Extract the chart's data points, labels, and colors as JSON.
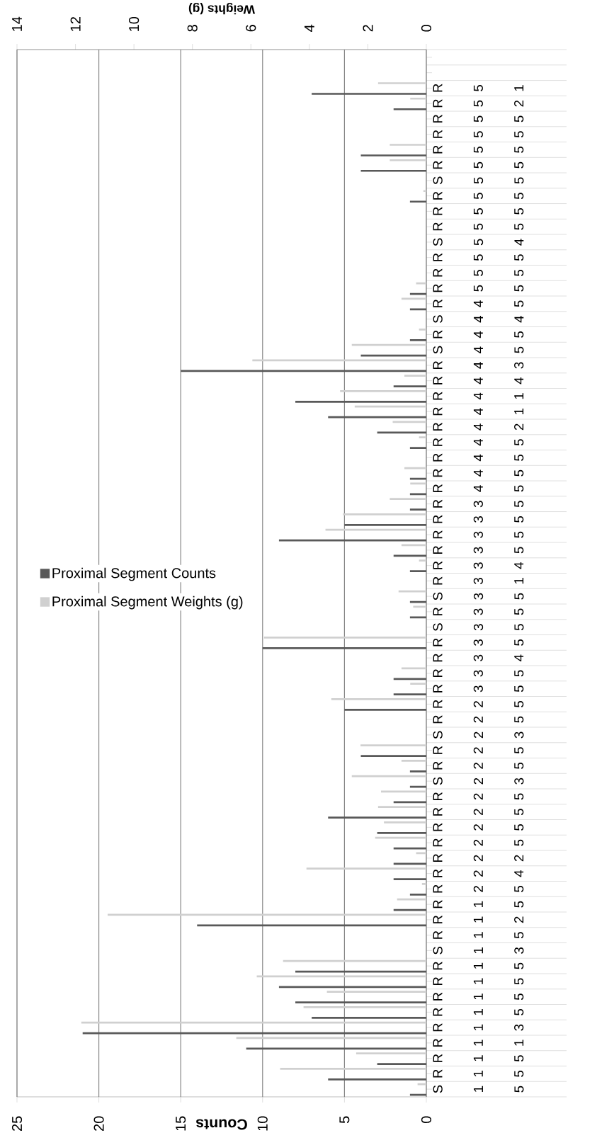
{
  "chart_data": {
    "type": "bar",
    "orientation": "horizontal",
    "categories": [
      null,
      null,
      "R 5 1",
      "R 5 2",
      "R 5 5",
      "R 5 5",
      "R 5 5",
      "R 5 5",
      "S 5 5",
      "R 5 5",
      "R 5 5",
      "R 5 5",
      "S 5 4",
      "R 5 5",
      "R 5 5",
      "R 5 5",
      "R 4 5",
      "S 4 4",
      "R 4 5",
      "S 4 5",
      "R 4 3",
      "R 4 4",
      "R 4 1",
      "R 4 1",
      "R 4 2",
      "R 4 5",
      "R 4 5",
      "R 4 5",
      "R 4 5",
      "R 3 5",
      "R 3 5",
      "R 3 5",
      "R 3 5",
      "R 3 4",
      "R 3 1",
      "S 3 5",
      "R 3 5",
      "S 3 5",
      "R 3 5",
      "R 3 4",
      "R 3 5",
      "R 3 5",
      "R 2 5",
      "R 2 5",
      "S 2 3",
      "R 2 5",
      "R 2 5",
      "S 2 3",
      "R 2 5",
      "R 2 5",
      "R 2 5",
      "R 2 5",
      "R 2 2",
      "R 2 4",
      "R 2 5",
      "R 1 5",
      "R 1 2",
      "R 1 5",
      "S 1 3",
      "R 1 5",
      "R 1 5",
      "R 1 5",
      "R 1 5",
      "R 1 3",
      "R 1 1",
      "R 1 5",
      "R 1 5",
      "S 1 5"
    ],
    "xlabel": "Counts",
    "x2label": "Weights (g)",
    "xlim": [
      25,
      0
    ],
    "xticks": [
      0,
      5,
      10,
      15,
      20,
      25
    ],
    "x2lim": [
      14,
      0
    ],
    "x2ticks": [
      0,
      2,
      4,
      6,
      8,
      10,
      12,
      14
    ],
    "grid": "x",
    "legend": "left",
    "series": [
      {
        "name": "Proximal Segment Counts",
        "color": "#595959",
        "values": [
          null,
          null,
          7,
          2,
          null,
          null,
          4,
          4,
          null,
          1,
          null,
          null,
          null,
          null,
          null,
          1,
          1,
          null,
          1,
          4,
          15,
          2,
          8,
          6,
          3,
          1,
          null,
          1,
          1,
          1,
          5,
          9,
          2,
          1,
          null,
          1,
          1,
          null,
          10,
          null,
          2,
          2,
          5,
          null,
          null,
          4,
          1,
          1,
          2,
          6,
          3,
          2,
          2,
          2,
          1,
          2,
          14,
          null,
          null,
          8,
          9,
          8,
          7,
          21,
          11,
          3,
          6,
          1
        ]
      },
      {
        "name": "Proximal Segment Weights (g)",
        "color": "#d0d0d0",
        "axis": "x2",
        "values": [
          null,
          null,
          1.65,
          0.55,
          null,
          null,
          1.25,
          1.25,
          null,
          0.1,
          null,
          null,
          null,
          null,
          null,
          0.35,
          0.85,
          null,
          0.25,
          2.55,
          5.95,
          0.75,
          2.95,
          2.45,
          1.15,
          0.25,
          null,
          0.75,
          0.55,
          1.25,
          2.85,
          3.45,
          0.85,
          0.25,
          null,
          0.95,
          0.45,
          null,
          5.55,
          null,
          0.85,
          0.55,
          3.25,
          null,
          null,
          2.25,
          0.85,
          2.55,
          1.55,
          1.65,
          1.45,
          1.75,
          0.35,
          4.1,
          0.15,
          1.0,
          10.9,
          null,
          null,
          4.9,
          5.8,
          3.4,
          4.2,
          11.8,
          6.5,
          2.4,
          5.0,
          0.3
        ]
      }
    ]
  }
}
